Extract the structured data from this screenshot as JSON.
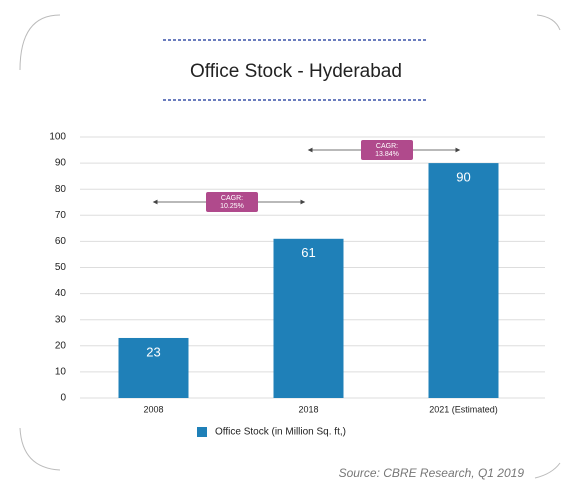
{
  "chart_data": {
    "type": "bar",
    "title": "Office Stock - Hyderabad",
    "categories": [
      "2008",
      "2018",
      "2021 (Estimated)"
    ],
    "series": [
      {
        "name": "Office Stock (in Million Sq. ft,)",
        "color": "#1f80b8",
        "values": [
          23,
          61,
          90
        ]
      }
    ],
    "ylim": [
      0,
      100
    ],
    "yticks": [
      0,
      10,
      20,
      30,
      40,
      50,
      60,
      70,
      80,
      90,
      100
    ],
    "grid": true,
    "annotations": [
      {
        "text": [
          "CAGR:",
          "10.25%"
        ]
      },
      {
        "text": [
          "CAGR:",
          "13.84%"
        ]
      }
    ],
    "source": "Source: CBRE Research, Q1 2019"
  }
}
